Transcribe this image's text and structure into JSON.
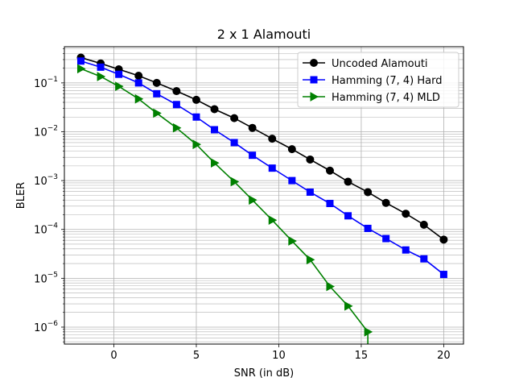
{
  "chart_data": {
    "type": "line",
    "title": "2 x 1 Alamouti",
    "xlabel": "SNR (in dB)",
    "ylabel": "BLER",
    "xlim": [
      -3,
      21.2
    ],
    "ylim": [
      4.5e-07,
      0.55
    ],
    "yscale": "log",
    "grid": true,
    "legend_position": "top-right",
    "x_ticks": [
      0,
      5,
      10,
      15,
      20
    ],
    "y_tick_exponents": [
      -6,
      -5,
      -4,
      -3,
      -2,
      -1
    ],
    "y_tick_base": "10",
    "series": [
      {
        "name": "Uncoded Alamouti",
        "color": "#000000",
        "marker": "circle",
        "x": [
          -2,
          -0.8,
          0.3,
          1.5,
          2.6,
          3.8,
          5.0,
          6.1,
          7.3,
          8.4,
          9.6,
          10.8,
          11.9,
          13.1,
          14.2,
          15.4,
          16.5,
          17.7,
          18.8,
          20.0
        ],
        "y": [
          0.33,
          0.25,
          0.19,
          0.14,
          0.1,
          0.068,
          0.045,
          0.029,
          0.019,
          0.012,
          0.0072,
          0.0044,
          0.0027,
          0.0016,
          0.00095,
          0.00058,
          0.00035,
          0.00021,
          0.000125,
          6.2e-05
        ]
      },
      {
        "name": "Hamming (7, 4) Hard",
        "color": "#0000ff",
        "marker": "square",
        "x": [
          -2,
          -0.8,
          0.3,
          1.5,
          2.6,
          3.8,
          5.0,
          6.1,
          7.3,
          8.4,
          9.6,
          10.8,
          11.9,
          13.1,
          14.2,
          15.4,
          16.5,
          17.7,
          18.8,
          20.0
        ],
        "y": [
          0.28,
          0.21,
          0.15,
          0.1,
          0.06,
          0.036,
          0.02,
          0.011,
          0.006,
          0.0033,
          0.0018,
          0.001,
          0.00058,
          0.00034,
          0.00019,
          0.000105,
          6.5e-05,
          3.8e-05,
          2.5e-05,
          1.2e-05
        ]
      },
      {
        "name": "Hamming (7, 4) MLD",
        "color": "#008000",
        "marker": "triangle-right",
        "x": [
          -2,
          -0.8,
          0.3,
          1.5,
          2.6,
          3.8,
          5.0,
          6.1,
          7.3,
          8.4,
          9.6,
          10.8,
          11.9,
          13.1,
          14.2,
          15.4
        ],
        "y": [
          0.195,
          0.135,
          0.085,
          0.047,
          0.024,
          0.012,
          0.0055,
          0.0023,
          0.00095,
          0.0004,
          0.000155,
          5.8e-05,
          2.4e-05,
          6.8e-06,
          2.7e-06,
          8e-07
        ]
      }
    ]
  }
}
